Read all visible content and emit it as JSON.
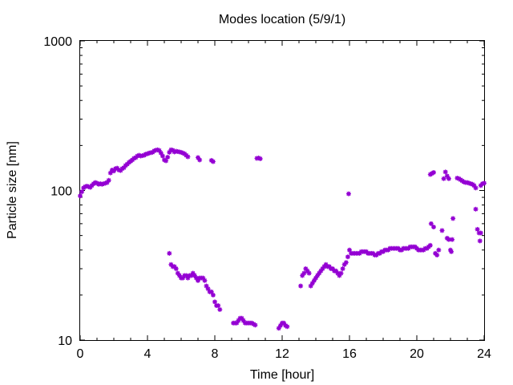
{
  "chart_data": {
    "type": "scatter",
    "title": "Modes location (5/9/1)",
    "xlabel": "Time [hour]",
    "ylabel": "Particle size [nm]",
    "xlim": [
      0,
      24
    ],
    "ylim": [
      10,
      1000
    ],
    "yscale": "log",
    "grid": false,
    "legend": "none",
    "x_ticks": [
      0,
      4,
      8,
      12,
      16,
      20,
      24
    ],
    "x_tick_labels": [
      "0",
      "4",
      "8",
      "12",
      "16",
      "20",
      "24"
    ],
    "y_ticks": [
      10,
      100,
      1000
    ],
    "y_tick_labels": [
      "10",
      "100",
      "1000"
    ],
    "marker_color": "#9400d3",
    "series": [
      {
        "points": [
          [
            0.0,
            92
          ],
          [
            0.1,
            98
          ],
          [
            0.2,
            104
          ],
          [
            0.3,
            106
          ],
          [
            0.4,
            107
          ],
          [
            0.5,
            106
          ],
          [
            0.6,
            105
          ],
          [
            0.7,
            108
          ],
          [
            0.8,
            111
          ],
          [
            0.9,
            113
          ],
          [
            1.0,
            112
          ],
          [
            1.1,
            110
          ],
          [
            1.2,
            111
          ],
          [
            1.3,
            110
          ],
          [
            1.4,
            111
          ],
          [
            1.5,
            112
          ],
          [
            1.6,
            113
          ],
          [
            1.7,
            117
          ],
          [
            1.8,
            131
          ],
          [
            1.9,
            137
          ],
          [
            2.0,
            135
          ],
          [
            2.1,
            140
          ],
          [
            2.2,
            141
          ],
          [
            2.3,
            137
          ],
          [
            2.4,
            136
          ],
          [
            2.5,
            140
          ],
          [
            2.6,
            142
          ],
          [
            2.7,
            147
          ],
          [
            2.8,
            150
          ],
          [
            2.9,
            154
          ],
          [
            3.0,
            157
          ],
          [
            3.1,
            160
          ],
          [
            3.2,
            164
          ],
          [
            3.3,
            166
          ],
          [
            3.4,
            170
          ],
          [
            3.5,
            172
          ],
          [
            3.6,
            170
          ],
          [
            3.7,
            171
          ],
          [
            3.8,
            172
          ],
          [
            3.9,
            175
          ],
          [
            4.0,
            176
          ],
          [
            4.1,
            178
          ],
          [
            4.2,
            179
          ],
          [
            4.3,
            180
          ],
          [
            4.4,
            184
          ],
          [
            4.5,
            186
          ],
          [
            4.6,
            187
          ],
          [
            4.7,
            185
          ],
          [
            4.8,
            178
          ],
          [
            4.9,
            170
          ],
          [
            5.0,
            160
          ],
          [
            5.1,
            158
          ],
          [
            5.2,
            167
          ],
          [
            5.3,
            180
          ],
          [
            5.4,
            187
          ],
          [
            5.5,
            186
          ],
          [
            5.6,
            181
          ],
          [
            5.7,
            183
          ],
          [
            5.8,
            182
          ],
          [
            5.9,
            181
          ],
          [
            6.0,
            180
          ],
          [
            6.1,
            178
          ],
          [
            6.2,
            176
          ],
          [
            6.3,
            172
          ],
          [
            6.4,
            168
          ],
          [
            7.0,
            166
          ],
          [
            7.1,
            160
          ],
          [
            7.8,
            159
          ],
          [
            7.9,
            156
          ],
          [
            10.5,
            164
          ],
          [
            10.6,
            165
          ],
          [
            10.7,
            163
          ],
          [
            5.3,
            38
          ],
          [
            5.4,
            32
          ],
          [
            5.5,
            31
          ],
          [
            5.6,
            31
          ],
          [
            5.7,
            30
          ],
          [
            5.8,
            28
          ],
          [
            5.9,
            27
          ],
          [
            6.0,
            26
          ],
          [
            6.1,
            26
          ],
          [
            6.2,
            27
          ],
          [
            6.3,
            27
          ],
          [
            6.4,
            26
          ],
          [
            6.5,
            27
          ],
          [
            6.6,
            27
          ],
          [
            6.7,
            28
          ],
          [
            6.8,
            27
          ],
          [
            6.9,
            26
          ],
          [
            7.0,
            25
          ],
          [
            7.1,
            26
          ],
          [
            7.2,
            26
          ],
          [
            7.3,
            26
          ],
          [
            7.4,
            25
          ],
          [
            7.5,
            23
          ],
          [
            7.6,
            22
          ],
          [
            7.7,
            21
          ],
          [
            7.8,
            21
          ],
          [
            7.9,
            20
          ],
          [
            8.0,
            18
          ],
          [
            8.1,
            17
          ],
          [
            8.2,
            17
          ],
          [
            8.3,
            16
          ],
          [
            9.1,
            13
          ],
          [
            9.2,
            13
          ],
          [
            9.3,
            13
          ],
          [
            9.4,
            13.5
          ],
          [
            9.5,
            14
          ],
          [
            9.6,
            14
          ],
          [
            9.7,
            13.5
          ],
          [
            9.8,
            13
          ],
          [
            9.9,
            13
          ],
          [
            10.0,
            13
          ],
          [
            10.1,
            13
          ],
          [
            10.2,
            13
          ],
          [
            10.3,
            12.8
          ],
          [
            10.4,
            12.6
          ],
          [
            11.8,
            12
          ],
          [
            11.9,
            12.5
          ],
          [
            12.0,
            13
          ],
          [
            12.1,
            13
          ],
          [
            12.2,
            12.5
          ],
          [
            12.3,
            12.3
          ],
          [
            13.1,
            23
          ],
          [
            13.2,
            27
          ],
          [
            13.3,
            28
          ],
          [
            13.4,
            30
          ],
          [
            13.5,
            29
          ],
          [
            13.6,
            28
          ],
          [
            13.7,
            23
          ],
          [
            13.8,
            24
          ],
          [
            13.9,
            25
          ],
          [
            14.0,
            26
          ],
          [
            14.1,
            27
          ],
          [
            14.2,
            28
          ],
          [
            14.3,
            29
          ],
          [
            14.4,
            30
          ],
          [
            14.5,
            31
          ],
          [
            14.6,
            32
          ],
          [
            14.7,
            31
          ],
          [
            14.8,
            31
          ],
          [
            14.9,
            30
          ],
          [
            15.0,
            30
          ],
          [
            15.1,
            29
          ],
          [
            15.2,
            29
          ],
          [
            15.3,
            28
          ],
          [
            15.4,
            27
          ],
          [
            15.5,
            28
          ],
          [
            15.6,
            30
          ],
          [
            15.7,
            32
          ],
          [
            15.8,
            33
          ],
          [
            15.9,
            36
          ],
          [
            16.0,
            40
          ],
          [
            15.95,
            95
          ],
          [
            16.1,
            38
          ],
          [
            16.2,
            38
          ],
          [
            16.3,
            38
          ],
          [
            16.4,
            38
          ],
          [
            16.5,
            38
          ],
          [
            16.6,
            38
          ],
          [
            16.7,
            39
          ],
          [
            16.8,
            39
          ],
          [
            16.9,
            39
          ],
          [
            17.0,
            39
          ],
          [
            17.1,
            38
          ],
          [
            17.2,
            38
          ],
          [
            17.3,
            38
          ],
          [
            17.4,
            38
          ],
          [
            17.5,
            37
          ],
          [
            17.6,
            37
          ],
          [
            17.7,
            38
          ],
          [
            17.8,
            38
          ],
          [
            17.9,
            39
          ],
          [
            18.0,
            39
          ],
          [
            18.1,
            40
          ],
          [
            18.2,
            40
          ],
          [
            18.3,
            40
          ],
          [
            18.4,
            41
          ],
          [
            18.5,
            41
          ],
          [
            18.6,
            41
          ],
          [
            18.7,
            41
          ],
          [
            18.8,
            41
          ],
          [
            18.9,
            41
          ],
          [
            19.0,
            40
          ],
          [
            19.1,
            40
          ],
          [
            19.2,
            41
          ],
          [
            19.3,
            41
          ],
          [
            19.4,
            41
          ],
          [
            19.5,
            41
          ],
          [
            19.6,
            42
          ],
          [
            19.7,
            42
          ],
          [
            19.8,
            42
          ],
          [
            19.9,
            42
          ],
          [
            20.0,
            41
          ],
          [
            20.1,
            40
          ],
          [
            20.2,
            40
          ],
          [
            20.3,
            40
          ],
          [
            20.4,
            40
          ],
          [
            20.5,
            41
          ],
          [
            20.6,
            41
          ],
          [
            20.7,
            42
          ],
          [
            20.8,
            43
          ],
          [
            20.85,
            60
          ],
          [
            21.0,
            57
          ],
          [
            21.1,
            38
          ],
          [
            21.2,
            37
          ],
          [
            21.3,
            40
          ],
          [
            21.5,
            54
          ],
          [
            21.8,
            48
          ],
          [
            21.9,
            47
          ],
          [
            22.0,
            40
          ],
          [
            22.05,
            39
          ],
          [
            22.1,
            47
          ],
          [
            22.15,
            65
          ],
          [
            23.5,
            75
          ],
          [
            23.6,
            55
          ],
          [
            23.7,
            52
          ],
          [
            23.75,
            46
          ],
          [
            23.8,
            52
          ],
          [
            20.8,
            128
          ],
          [
            20.9,
            130
          ],
          [
            21.0,
            132
          ],
          [
            21.6,
            120
          ],
          [
            21.7,
            133
          ],
          [
            21.8,
            125
          ],
          [
            21.9,
            120
          ],
          [
            22.4,
            121
          ],
          [
            22.5,
            120
          ],
          [
            22.6,
            118
          ],
          [
            22.7,
            116
          ],
          [
            22.8,
            114
          ],
          [
            22.9,
            113
          ],
          [
            23.0,
            113
          ],
          [
            23.1,
            112
          ],
          [
            23.2,
            111
          ],
          [
            23.3,
            110
          ],
          [
            23.4,
            108
          ],
          [
            23.5,
            104
          ],
          [
            23.8,
            108
          ],
          [
            23.9,
            111
          ],
          [
            24.0,
            112
          ]
        ]
      }
    ]
  }
}
